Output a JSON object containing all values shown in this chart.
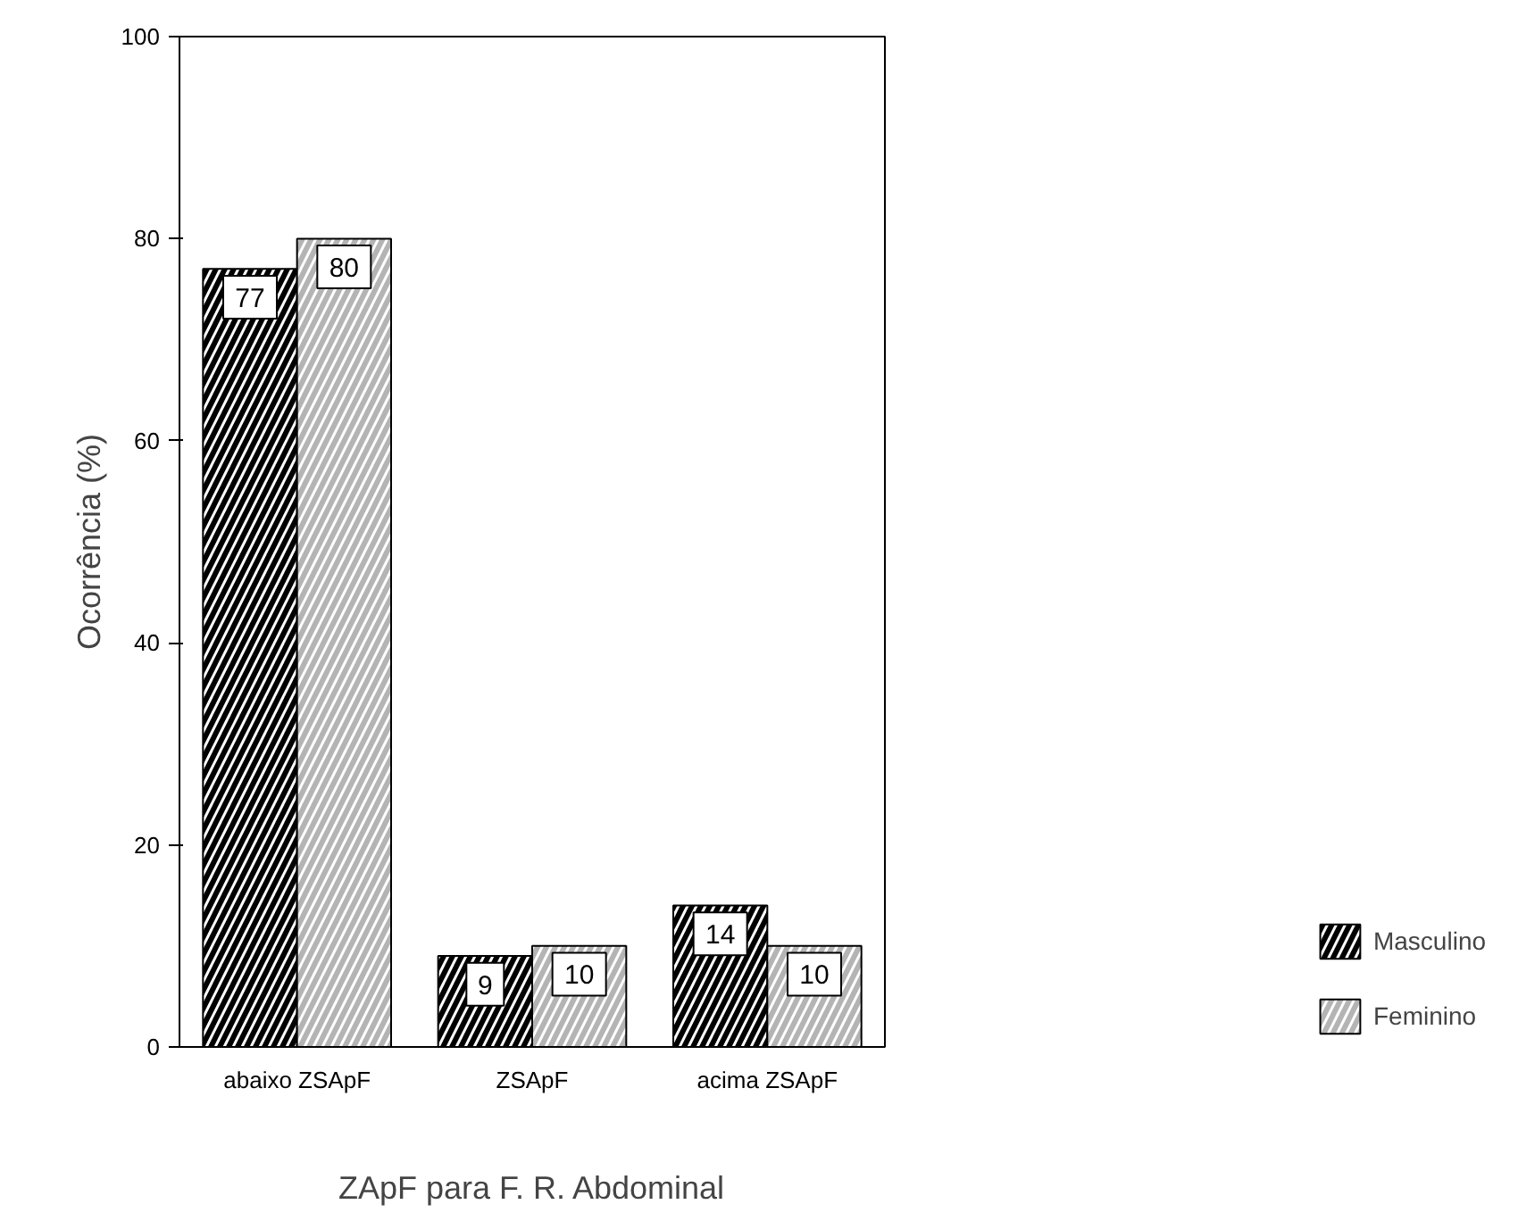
{
  "chart_data": {
    "type": "bar",
    "xlabel": "ZApF para F. R. Abdominal",
    "ylabel": "Ocorrência (%)",
    "categories": [
      "abaixo ZSApF",
      "ZSApF",
      "acima ZSApF"
    ],
    "series": [
      {
        "name": "Masculino",
        "color": "#000000",
        "values": [
          77,
          9,
          14
        ]
      },
      {
        "name": "Feminino",
        "color": "#b4b4b4",
        "values": [
          80,
          10,
          10
        ]
      }
    ],
    "ylim": [
      0,
      100
    ],
    "yticks": [
      0,
      20,
      40,
      60,
      80,
      100
    ],
    "grid": false,
    "legend": "bottom right",
    "data_labels": true
  }
}
